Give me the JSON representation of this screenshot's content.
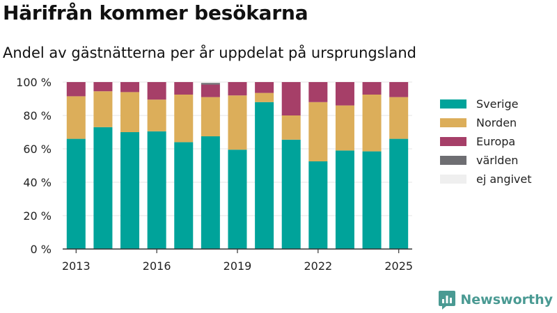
{
  "header": {
    "title": "Härifrån kommer besökarna",
    "subtitle": "Andel av gästnätterna per år uppdelat på ursprungsland"
  },
  "brand": {
    "name": "Newsworthy",
    "icon": "newsworthy-logo-icon"
  },
  "colors": {
    "Sverige": "#00a39a",
    "Norden": "#dcae5a",
    "Europa": "#a63f68",
    "världen": "#6e6e72",
    "ej angivet": "#efefef",
    "axis": "#333333",
    "grid": "#e6e6e6"
  },
  "chart_data": {
    "type": "bar",
    "stacked": true,
    "x": [
      2013,
      2014,
      2015,
      2016,
      2017,
      2018,
      2019,
      2020,
      2021,
      2022,
      2023,
      2024,
      2025
    ],
    "x_tick_labels": [
      "2013",
      "2016",
      "2019",
      "2022",
      "2025"
    ],
    "y_tick_labels": [
      "0 %",
      "20 %",
      "40 %",
      "60 %",
      "80 %",
      "100 %"
    ],
    "ylim": [
      0,
      100
    ],
    "grid": true,
    "legend_position": "right",
    "series": [
      {
        "name": "Sverige",
        "values": [
          66,
          73,
          70,
          70.5,
          64,
          67.5,
          59.5,
          88,
          65.5,
          52.5,
          59,
          58.5,
          66
        ]
      },
      {
        "name": "Norden",
        "values": [
          25.5,
          21.5,
          24,
          19,
          28.5,
          23.5,
          32.5,
          5.5,
          14.5,
          35.5,
          27,
          34,
          25
        ]
      },
      {
        "name": "Europa",
        "values": [
          8.5,
          5.5,
          6,
          10.5,
          7.5,
          7.5,
          8,
          6.5,
          20,
          12,
          14,
          7.5,
          9
        ]
      },
      {
        "name": "världen",
        "values": [
          0,
          0,
          0,
          0,
          0,
          1,
          0,
          0,
          0,
          0,
          0,
          0,
          0
        ]
      },
      {
        "name": "ej angivet",
        "values": [
          0,
          0,
          0,
          0,
          0,
          0.5,
          0,
          0,
          0,
          0,
          0,
          0,
          0
        ]
      }
    ]
  }
}
